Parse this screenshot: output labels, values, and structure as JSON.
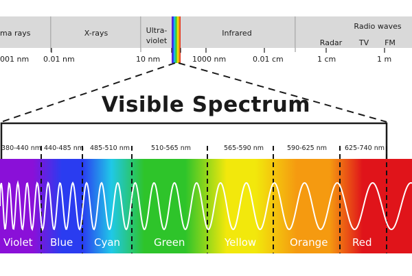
{
  "spectrum_bar": {
    "sections": [
      "ma rays",
      "X-rays",
      "Ultra-\nviolet",
      "Infrared",
      "Radio waves"
    ],
    "radio_subbands": [
      "Radar",
      "TV",
      "FM"
    ],
    "ticks": [
      "001 nm",
      "0.01 nm",
      "10 nm",
      "1000 nm",
      "0.01 cm",
      "1 cm",
      "1 m"
    ]
  },
  "title": "Visible Spectrum",
  "visible": {
    "ranges": [
      "380-440 nm",
      "440-485 nm",
      "485-510 nm",
      "510-565 nm",
      "565-590 nm",
      "590-625 nm",
      "625-740 nm"
    ],
    "colors": [
      {
        "name": "Violet",
        "hex": "#8a10d8"
      },
      {
        "name": "Blue",
        "hex": "#2a3cf0"
      },
      {
        "name": "Cyan",
        "hex": "#20c8e8"
      },
      {
        "name": "Green",
        "hex": "#2ec42a"
      },
      {
        "name": "Yellow",
        "hex": "#f2e80c"
      },
      {
        "name": "Orange",
        "hex": "#f59a10"
      },
      {
        "name": "Red",
        "hex": "#e0141a"
      }
    ]
  },
  "colors": {
    "band_gray": "#d9d9d9",
    "ink": "#1a1a1a",
    "wave": "#ffffff"
  }
}
